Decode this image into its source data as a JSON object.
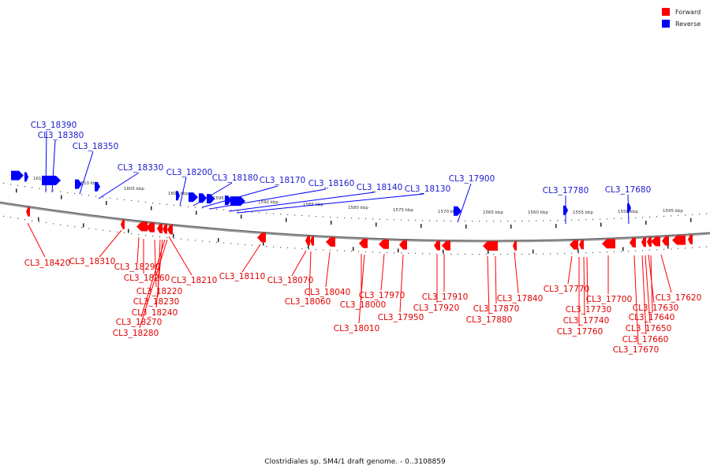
{
  "caption": "Clostridiales sp. SM4/1 draft genome. - 0..3108859",
  "legend": [
    {
      "label": "Forward",
      "color": "#ff0000"
    },
    {
      "label": "Reverse",
      "color": "#0000ff"
    }
  ],
  "colors": {
    "forward": "#ff0000",
    "reverse": "#0000ff",
    "backbone": "#888888"
  },
  "kbp_ticks": [
    "1615 kbp",
    "1610 kbp",
    "1605 kbp",
    "1600 kbp",
    "1595 kbp",
    "1590 kbp",
    "1585 kbp",
    "1580 kbp",
    "1575 kbp",
    "1570 kbp",
    "1565 kbp",
    "1560 kbp",
    "1555 kbp",
    "1550 kbp",
    "1545 kbp"
  ],
  "reverse_labels": [
    "CL3_18390",
    "CL3_18380",
    "CL3_18350",
    "CL3_18330",
    "CL3_18200",
    "CL3_18180",
    "CL3_18170",
    "CL3_18160",
    "CL3_18140",
    "CL3_18130",
    "CL3_17900",
    "CL3_17780",
    "CL3_17680"
  ],
  "forward_labels": [
    "CL3_18420",
    "CL3_18310",
    "CL3_18290",
    "CL3_18260",
    "CL3_18220",
    "CL3_18230",
    "CL3_18240",
    "CL3_18270",
    "CL3_18280",
    "CL3_18210",
    "CL3_18110",
    "CL3_18070",
    "CL3_18060",
    "CL3_18040",
    "CL3_18000",
    "CL3_18010",
    "CL3_17970",
    "CL3_17950",
    "CL3_17910",
    "CL3_17920",
    "CL3_17870",
    "CL3_17880",
    "CL3_17840",
    "CL3_17770",
    "CL3_17730",
    "CL3_17740",
    "CL3_17760",
    "CL3_17700",
    "CL3_17630",
    "CL3_17620",
    "CL3_17650",
    "CL3_17640",
    "CL3_17660",
    "CL3_17670"
  ]
}
